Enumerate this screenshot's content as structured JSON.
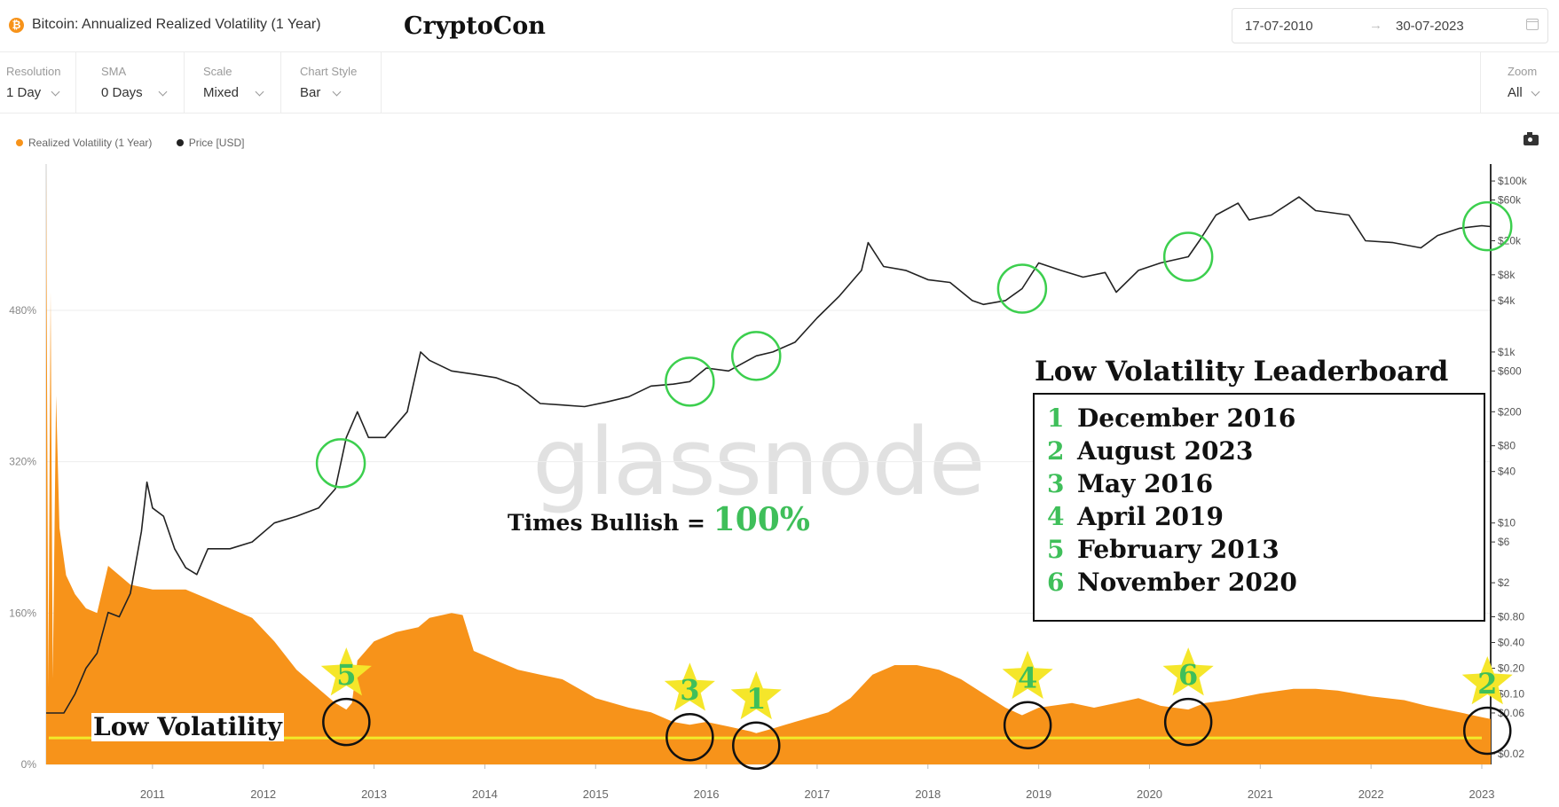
{
  "header": {
    "title": "Bitcoin: Annualized Realized Volatility (1 Year)",
    "author": "CryptoCon",
    "date_from": "17-07-2010",
    "date_arrow": "→",
    "date_to": "30-07-2023"
  },
  "controls": [
    {
      "label": "Resolution",
      "value": "1 Day"
    },
    {
      "label": "SMA",
      "value": "0 Days"
    },
    {
      "label": "Scale",
      "value": "Mixed"
    },
    {
      "label": "Chart Style",
      "value": "Bar"
    }
  ],
  "zoom": {
    "label": "Zoom",
    "value": "All"
  },
  "legend": [
    {
      "label": "Realized Volatility (1 Year)",
      "color": "#f7931a"
    },
    {
      "label": "Price [USD]",
      "color": "#222222"
    }
  ],
  "watermark": "glassnode",
  "annotations": {
    "bullish_label": "Times Bullish =",
    "bullish_value": "100%",
    "low_volatility_label": "Low Volatility",
    "leaderboard_title": "Low Volatility Leaderboard",
    "leaderboard": [
      {
        "rank": "1",
        "period": "December 2016"
      },
      {
        "rank": "2",
        "period": "August 2023"
      },
      {
        "rank": "3",
        "period": "May 2016"
      },
      {
        "rank": "4",
        "period": "April 2019"
      },
      {
        "rank": "5",
        "period": "February 2013"
      },
      {
        "rank": "6",
        "period": "November 2020"
      }
    ],
    "star_markers": [
      {
        "rank": "5",
        "date": 2013.25
      },
      {
        "rank": "3",
        "date": 2016.35
      },
      {
        "rank": "1",
        "date": 2016.95
      },
      {
        "rank": "4",
        "date": 2019.4
      },
      {
        "rank": "6",
        "date": 2020.85
      },
      {
        "rank": "2",
        "date": 2023.55
      }
    ],
    "price_circles": [
      2013.2,
      2016.35,
      2016.95,
      2019.35,
      2020.85,
      2023.55
    ],
    "low_vol_threshold": 28
  },
  "chart_data": {
    "type": "area+line",
    "title": "Bitcoin: Annualized Realized Volatility (1 Year)",
    "x_ticks": [
      "2011",
      "2012",
      "2013",
      "2014",
      "2015",
      "2016",
      "2017",
      "2018",
      "2019",
      "2020",
      "2021",
      "2022",
      "2023"
    ],
    "xlim": [
      2010.54,
      2023.58
    ],
    "left_axis": {
      "ticks": [
        "0%",
        "160%",
        "320%",
        "480%"
      ],
      "values": [
        0,
        160,
        320,
        480
      ],
      "ylim": [
        0,
        630
      ]
    },
    "right_axis": {
      "scale": "log",
      "ticks": [
        "$0.02",
        "$0.06",
        "$0.10",
        "$0.20",
        "$0.40",
        "$0.80",
        "$2",
        "$6",
        "$10",
        "$40",
        "$80",
        "$200",
        "$600",
        "$1k",
        "$4k",
        "$8k",
        "$20k",
        "$60k",
        "$100k"
      ],
      "values": [
        0.02,
        0.06,
        0.1,
        0.2,
        0.4,
        0.8,
        2,
        6,
        10,
        40,
        80,
        200,
        600,
        1000,
        4000,
        8000,
        20000,
        60000,
        100000
      ],
      "ylim": [
        0.015,
        140000
      ]
    },
    "series": [
      {
        "name": "Realized Volatility (1 Year)",
        "unit": "%",
        "color": "#f7931a",
        "points": [
          [
            2010.54,
            630
          ],
          [
            2010.56,
            80
          ],
          [
            2010.58,
            500
          ],
          [
            2010.6,
            90
          ],
          [
            2010.63,
            390
          ],
          [
            2010.66,
            250
          ],
          [
            2010.72,
            200
          ],
          [
            2010.8,
            180
          ],
          [
            2010.9,
            165
          ],
          [
            2011.0,
            160
          ],
          [
            2011.1,
            210
          ],
          [
            2011.3,
            190
          ],
          [
            2011.5,
            185
          ],
          [
            2011.8,
            185
          ],
          [
            2012.0,
            175
          ],
          [
            2012.2,
            165
          ],
          [
            2012.4,
            155
          ],
          [
            2012.6,
            130
          ],
          [
            2012.8,
            100
          ],
          [
            2013.0,
            80
          ],
          [
            2013.15,
            65
          ],
          [
            2013.25,
            58
          ],
          [
            2013.3,
            65
          ],
          [
            2013.35,
            110
          ],
          [
            2013.5,
            130
          ],
          [
            2013.7,
            140
          ],
          [
            2013.9,
            145
          ],
          [
            2014.0,
            155
          ],
          [
            2014.2,
            160
          ],
          [
            2014.3,
            158
          ],
          [
            2014.4,
            120
          ],
          [
            2014.6,
            110
          ],
          [
            2014.8,
            100
          ],
          [
            2015.0,
            95
          ],
          [
            2015.2,
            90
          ],
          [
            2015.5,
            70
          ],
          [
            2015.8,
            60
          ],
          [
            2016.0,
            55
          ],
          [
            2016.2,
            45
          ],
          [
            2016.35,
            42
          ],
          [
            2016.5,
            45
          ],
          [
            2016.7,
            40
          ],
          [
            2016.9,
            35
          ],
          [
            2016.95,
            33
          ],
          [
            2017.1,
            38
          ],
          [
            2017.3,
            45
          ],
          [
            2017.6,
            55
          ],
          [
            2017.8,
            70
          ],
          [
            2018.0,
            95
          ],
          [
            2018.2,
            105
          ],
          [
            2018.4,
            105
          ],
          [
            2018.6,
            100
          ],
          [
            2018.8,
            90
          ],
          [
            2019.0,
            75
          ],
          [
            2019.2,
            60
          ],
          [
            2019.35,
            52
          ],
          [
            2019.5,
            60
          ],
          [
            2019.8,
            65
          ],
          [
            2020.0,
            60
          ],
          [
            2020.2,
            65
          ],
          [
            2020.4,
            70
          ],
          [
            2020.6,
            62
          ],
          [
            2020.85,
            58
          ],
          [
            2021.0,
            65
          ],
          [
            2021.2,
            68
          ],
          [
            2021.5,
            75
          ],
          [
            2021.8,
            80
          ],
          [
            2022.0,
            80
          ],
          [
            2022.2,
            78
          ],
          [
            2022.5,
            72
          ],
          [
            2022.8,
            68
          ],
          [
            2023.0,
            62
          ],
          [
            2023.3,
            55
          ],
          [
            2023.5,
            50
          ],
          [
            2023.58,
            48
          ]
        ]
      },
      {
        "name": "Price [USD]",
        "unit": "USD",
        "axis": "right",
        "color": "#222222",
        "points": [
          [
            2010.54,
            0.06
          ],
          [
            2010.7,
            0.06
          ],
          [
            2010.8,
            0.1
          ],
          [
            2010.9,
            0.2
          ],
          [
            2011.0,
            0.3
          ],
          [
            2011.1,
            0.9
          ],
          [
            2011.2,
            0.8
          ],
          [
            2011.3,
            1.5
          ],
          [
            2011.4,
            8
          ],
          [
            2011.45,
            30
          ],
          [
            2011.5,
            15
          ],
          [
            2011.6,
            12
          ],
          [
            2011.7,
            5
          ],
          [
            2011.8,
            3
          ],
          [
            2011.9,
            2.5
          ],
          [
            2012.0,
            5
          ],
          [
            2012.2,
            5
          ],
          [
            2012.4,
            6
          ],
          [
            2012.6,
            10
          ],
          [
            2012.8,
            12
          ],
          [
            2013.0,
            15
          ],
          [
            2013.15,
            25
          ],
          [
            2013.25,
            100
          ],
          [
            2013.35,
            200
          ],
          [
            2013.45,
            100
          ],
          [
            2013.6,
            100
          ],
          [
            2013.8,
            200
          ],
          [
            2013.92,
            1000
          ],
          [
            2014.0,
            800
          ],
          [
            2014.2,
            600
          ],
          [
            2014.4,
            550
          ],
          [
            2014.6,
            500
          ],
          [
            2014.8,
            400
          ],
          [
            2015.0,
            250
          ],
          [
            2015.2,
            240
          ],
          [
            2015.4,
            230
          ],
          [
            2015.6,
            260
          ],
          [
            2015.8,
            300
          ],
          [
            2016.0,
            400
          ],
          [
            2016.2,
            420
          ],
          [
            2016.35,
            450
          ],
          [
            2016.5,
            650
          ],
          [
            2016.7,
            600
          ],
          [
            2016.95,
            900
          ],
          [
            2017.1,
            1000
          ],
          [
            2017.3,
            1300
          ],
          [
            2017.5,
            2500
          ],
          [
            2017.7,
            4500
          ],
          [
            2017.9,
            9000
          ],
          [
            2017.96,
            19000
          ],
          [
            2018.1,
            10000
          ],
          [
            2018.3,
            9000
          ],
          [
            2018.5,
            7000
          ],
          [
            2018.7,
            6500
          ],
          [
            2018.9,
            4000
          ],
          [
            2019.0,
            3600
          ],
          [
            2019.2,
            4000
          ],
          [
            2019.35,
            5500
          ],
          [
            2019.5,
            11000
          ],
          [
            2019.7,
            9000
          ],
          [
            2019.9,
            7500
          ],
          [
            2020.1,
            8500
          ],
          [
            2020.2,
            5000
          ],
          [
            2020.4,
            9000
          ],
          [
            2020.6,
            11000
          ],
          [
            2020.85,
            13000
          ],
          [
            2020.95,
            20000
          ],
          [
            2021.1,
            40000
          ],
          [
            2021.3,
            55000
          ],
          [
            2021.4,
            35000
          ],
          [
            2021.6,
            40000
          ],
          [
            2021.85,
            65000
          ],
          [
            2022.0,
            45000
          ],
          [
            2022.3,
            40000
          ],
          [
            2022.45,
            20000
          ],
          [
            2022.7,
            19000
          ],
          [
            2022.95,
            16500
          ],
          [
            2023.1,
            23000
          ],
          [
            2023.3,
            28000
          ],
          [
            2023.5,
            30000
          ],
          [
            2023.58,
            29300
          ]
        ]
      }
    ]
  }
}
